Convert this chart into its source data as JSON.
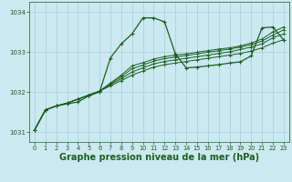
{
  "bg_color": "#cce8f0",
  "grid_color": "#aad4dd",
  "line_color": "#1a6020",
  "title": "Graphe pression niveau de la mer (hPa)",
  "title_fontsize": 7.0,
  "ylim": [
    1030.75,
    1034.25
  ],
  "xlim": [
    -0.5,
    23.5
  ],
  "yticks": [
    1031,
    1032,
    1033,
    1034
  ],
  "xticks": [
    0,
    1,
    2,
    3,
    4,
    5,
    6,
    7,
    8,
    9,
    10,
    11,
    12,
    13,
    14,
    15,
    16,
    17,
    18,
    19,
    20,
    21,
    22,
    23
  ],
  "series0": {
    "x": [
      0,
      1,
      2,
      3,
      4,
      5,
      6,
      7,
      8,
      9,
      10,
      11,
      12,
      13,
      14,
      15,
      16,
      17,
      18,
      19,
      20,
      21,
      22,
      23
    ],
    "y": [
      1031.05,
      1031.55,
      1031.65,
      1031.7,
      1031.75,
      1031.9,
      1032.0,
      1032.85,
      1033.2,
      1033.45,
      1033.85,
      1033.85,
      1033.75,
      1032.95,
      1032.6,
      1032.62,
      1032.65,
      1032.68,
      1032.72,
      1032.75,
      1032.9,
      1033.6,
      1033.62,
      1033.3
    ]
  },
  "series1": {
    "x": [
      0,
      1,
      2,
      3,
      4,
      5,
      6,
      7,
      8,
      9,
      10,
      11,
      12,
      13,
      14,
      15,
      16,
      17,
      18,
      19,
      20,
      21,
      22,
      23
    ],
    "y": [
      1031.05,
      1031.55,
      1031.65,
      1031.72,
      1031.82,
      1031.92,
      1032.02,
      1032.15,
      1032.28,
      1032.42,
      1032.52,
      1032.62,
      1032.68,
      1032.72,
      1032.76,
      1032.8,
      1032.84,
      1032.88,
      1032.92,
      1032.96,
      1033.02,
      1033.1,
      1033.22,
      1033.3
    ]
  },
  "series2": {
    "x": [
      0,
      1,
      2,
      3,
      4,
      5,
      6,
      7,
      8,
      9,
      10,
      11,
      12,
      13,
      14,
      15,
      16,
      17,
      18,
      19,
      20,
      21,
      22,
      23
    ],
    "y": [
      1031.05,
      1031.55,
      1031.65,
      1031.72,
      1031.82,
      1031.92,
      1032.02,
      1032.18,
      1032.33,
      1032.5,
      1032.6,
      1032.7,
      1032.76,
      1032.8,
      1032.84,
      1032.88,
      1032.92,
      1032.96,
      1033.0,
      1033.06,
      1033.12,
      1033.2,
      1033.35,
      1033.45
    ]
  },
  "series3": {
    "x": [
      0,
      1,
      2,
      3,
      4,
      5,
      6,
      7,
      8,
      9,
      10,
      11,
      12,
      13,
      14,
      15,
      16,
      17,
      18,
      19,
      20,
      21,
      22,
      23
    ],
    "y": [
      1031.05,
      1031.55,
      1031.65,
      1031.72,
      1031.82,
      1031.92,
      1032.02,
      1032.2,
      1032.38,
      1032.58,
      1032.67,
      1032.77,
      1032.83,
      1032.87,
      1032.91,
      1032.95,
      1032.99,
      1033.03,
      1033.07,
      1033.12,
      1033.18,
      1033.27,
      1033.42,
      1033.55
    ]
  },
  "series4": {
    "x": [
      0,
      1,
      2,
      3,
      4,
      5,
      6,
      7,
      8,
      9,
      10,
      11,
      12,
      13,
      14,
      15,
      16,
      17,
      18,
      19,
      20,
      21,
      22,
      23
    ],
    "y": [
      1031.05,
      1031.55,
      1031.65,
      1031.72,
      1031.82,
      1031.92,
      1032.02,
      1032.22,
      1032.42,
      1032.65,
      1032.73,
      1032.82,
      1032.88,
      1032.92,
      1032.95,
      1032.99,
      1033.03,
      1033.07,
      1033.1,
      1033.15,
      1033.22,
      1033.32,
      1033.5,
      1033.62
    ]
  }
}
